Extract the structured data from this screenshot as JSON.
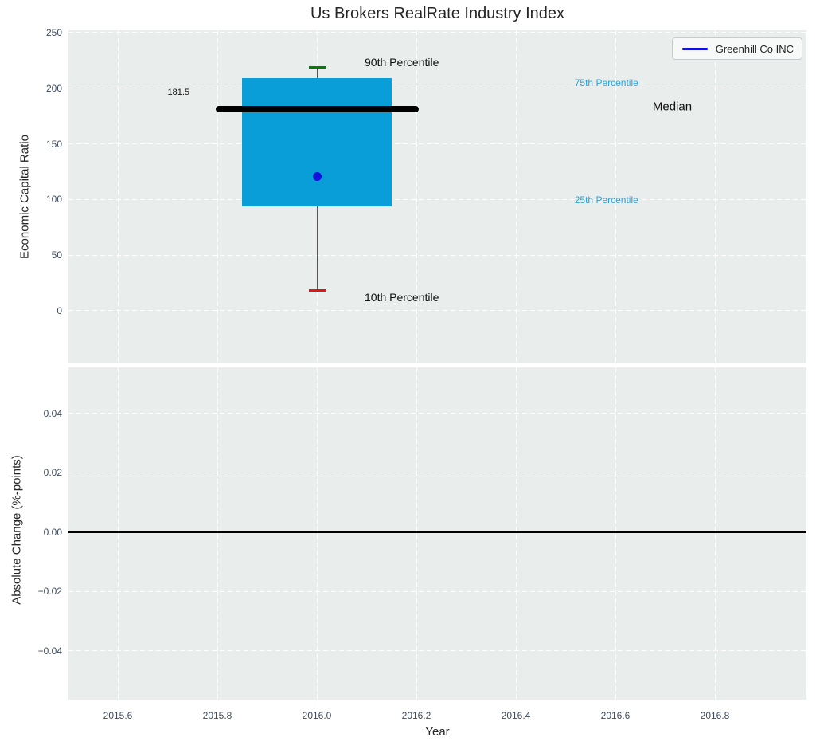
{
  "figure": {
    "title": "Us Brokers RealRate Industry Index",
    "legend": {
      "label": "Greenhill Co INC",
      "line_color": "#1212dd"
    }
  },
  "style": {
    "plot_bg": "#e9edec",
    "grid_color": "#ffffff",
    "tick_color": "#3f4c5e",
    "text_color": "#262626"
  },
  "chart_data": [
    {
      "type": "boxplot",
      "title": "Us Brokers RealRate Industry Index",
      "ylabel": "Economic Capital Ratio",
      "xlim": [
        2015.5008,
        2016.984
      ],
      "ylim": [
        -47.3,
        252.1
      ],
      "yticks": [
        0,
        50,
        100,
        150,
        200,
        250
      ],
      "ytick_labels": [
        "0",
        "50",
        "100",
        "150",
        "200",
        "250"
      ],
      "xticks": [
        2015.6,
        2015.8,
        2016.0,
        2016.2,
        2016.4,
        2016.6,
        2016.8
      ],
      "grid": true,
      "legend_position": "upper right",
      "box": {
        "x": 2016.0,
        "p10": 18.2,
        "p25": 93.9,
        "median": 181.5,
        "p75": 208.9,
        "p90": 218.9,
        "box_halfwidth_years": 0.151,
        "median_halfwidth_years": 0.204,
        "box_color": "#0a9ed8",
        "median_color": "#000000",
        "whisker_color": "#555555",
        "cap_90_color": "#008000",
        "cap_10_color": "#e01515"
      },
      "series": [
        {
          "name": "Greenhill Co INC",
          "x": 2016.0,
          "y": 121,
          "marker": "circle",
          "color": "#1212dd"
        }
      ],
      "annotations": [
        {
          "text": "181.5",
          "x": 2015.744,
          "y": 196.0,
          "anchor": "end",
          "color": "#111111",
          "size": 11
        },
        {
          "text": "90th Percentile",
          "x": 2016.096,
          "y": 223.4,
          "anchor": "start",
          "color": "#111111",
          "size": 14
        },
        {
          "text": "75th Percentile",
          "x": 2016.518,
          "y": 204.8,
          "anchor": "start",
          "color": "#2aa2d8",
          "size": 12
        },
        {
          "text": "Median",
          "x": 2016.675,
          "y": 183.3,
          "anchor": "start",
          "color": "#111111",
          "size": 15
        },
        {
          "text": "25th Percentile",
          "x": 2016.518,
          "y": 99.5,
          "anchor": "start",
          "color": "#2aa2d8",
          "size": 12
        },
        {
          "text": "10th Percentile",
          "x": 2016.096,
          "y": 12.2,
          "anchor": "start",
          "color": "#111111",
          "size": 14
        }
      ]
    },
    {
      "type": "line",
      "ylabel": "Absolute Change (%-points)",
      "xlabel": "Year",
      "xlim": [
        2015.5008,
        2016.984
      ],
      "ylim": [
        -0.0565,
        0.0555
      ],
      "yticks": [
        -0.04,
        -0.02,
        0,
        0.02,
        0.04
      ],
      "ytick_labels": [
        "−0.04",
        "−0.02",
        "0.00",
        "0.02",
        "0.04"
      ],
      "xticks": [
        2015.6,
        2015.8,
        2016.0,
        2016.2,
        2016.4,
        2016.6,
        2016.8
      ],
      "xtick_labels": [
        "2015.6",
        "2015.8",
        "2016.0",
        "2016.2",
        "2016.4",
        "2016.6",
        "2016.8"
      ],
      "grid": true,
      "zero_line": {
        "y": 0,
        "color": "#000000"
      },
      "series": []
    }
  ]
}
